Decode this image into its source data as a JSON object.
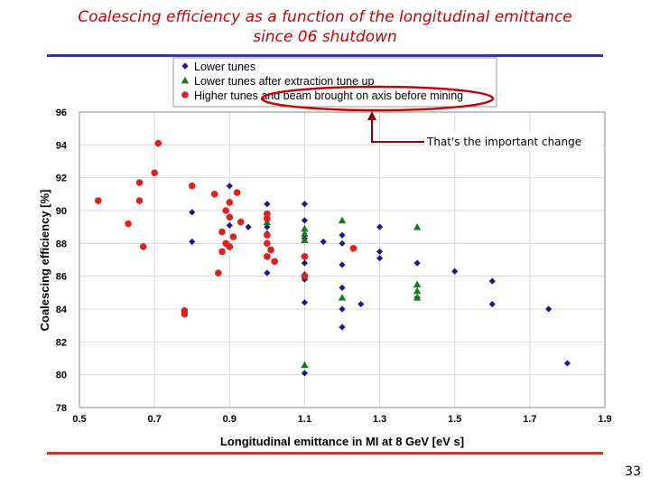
{
  "slide": {
    "title_line1": "Coalescing efficiency as a function of the longitudinal emittance",
    "title_line2": "since 06 shutdown",
    "page_number": "33",
    "annotation": "That's the important change"
  },
  "chart_data": {
    "type": "scatter",
    "title": "Coalescing efficiency as a function of the longitudinal emittance since 06 shutdown",
    "xlabel": "Longitudinal emittance in MI at 8 GeV [eV s]",
    "ylabel": "Coalescing efficiency [%]",
    "xlim": [
      0.5,
      1.9
    ],
    "ylim": [
      78,
      96
    ],
    "xticks": [
      "0.5",
      "0.7",
      "0.9",
      "1.1",
      "1.3",
      "1.5",
      "1.7",
      "1.9"
    ],
    "yticks": [
      "78",
      "80",
      "82",
      "84",
      "86",
      "88",
      "90",
      "92",
      "94",
      "96"
    ],
    "grid": true,
    "legend_position": "top",
    "series": [
      {
        "name": "Lower tunes",
        "marker": "diamond",
        "color": "#1a1a8c",
        "points": [
          [
            0.8,
            89.9
          ],
          [
            0.8,
            88.1
          ],
          [
            0.9,
            91.5
          ],
          [
            0.9,
            89.1
          ],
          [
            0.95,
            89.0
          ],
          [
            1.0,
            90.4
          ],
          [
            1.0,
            89.0
          ],
          [
            1.0,
            88.6
          ],
          [
            1.0,
            86.2
          ],
          [
            1.1,
            90.4
          ],
          [
            1.1,
            89.4
          ],
          [
            1.1,
            88.3
          ],
          [
            1.1,
            86.8
          ],
          [
            1.1,
            86.1
          ],
          [
            1.1,
            85.8
          ],
          [
            1.1,
            84.4
          ],
          [
            1.1,
            80.1
          ],
          [
            1.15,
            88.1
          ],
          [
            1.2,
            88.5
          ],
          [
            1.2,
            88.0
          ],
          [
            1.2,
            86.7
          ],
          [
            1.2,
            85.3
          ],
          [
            1.2,
            84.0
          ],
          [
            1.2,
            82.9
          ],
          [
            1.25,
            84.3
          ],
          [
            1.3,
            89.0
          ],
          [
            1.3,
            87.5
          ],
          [
            1.3,
            87.1
          ],
          [
            1.4,
            86.8
          ],
          [
            1.4,
            84.7
          ],
          [
            1.5,
            86.3
          ],
          [
            1.6,
            85.7
          ],
          [
            1.6,
            84.3
          ],
          [
            1.75,
            84.0
          ],
          [
            1.8,
            80.7
          ]
        ]
      },
      {
        "name": "Lower tunes after extraction tune up",
        "marker": "triangle",
        "color": "#1a7a1a",
        "points": [
          [
            1.0,
            89.3
          ],
          [
            1.1,
            88.9
          ],
          [
            1.1,
            88.6
          ],
          [
            1.1,
            88.2
          ],
          [
            1.1,
            80.6
          ],
          [
            1.2,
            89.4
          ],
          [
            1.2,
            84.7
          ],
          [
            1.4,
            89.0
          ],
          [
            1.4,
            85.5
          ],
          [
            1.4,
            85.1
          ],
          [
            1.4,
            84.7
          ]
        ]
      },
      {
        "name": "Higher tunes and beam brought on axis before mining",
        "marker": "circle",
        "color": "#e02020",
        "points": [
          [
            0.55,
            90.6
          ],
          [
            0.63,
            89.2
          ],
          [
            0.66,
            91.7
          ],
          [
            0.66,
            90.6
          ],
          [
            0.67,
            87.8
          ],
          [
            0.7,
            92.3
          ],
          [
            0.71,
            94.1
          ],
          [
            0.78,
            83.9
          ],
          [
            0.78,
            83.7
          ],
          [
            0.8,
            91.5
          ],
          [
            0.86,
            91.0
          ],
          [
            0.87,
            86.2
          ],
          [
            0.88,
            88.7
          ],
          [
            0.88,
            87.5
          ],
          [
            0.89,
            90.0
          ],
          [
            0.89,
            88.0
          ],
          [
            0.9,
            90.5
          ],
          [
            0.9,
            89.6
          ],
          [
            0.9,
            87.8
          ],
          [
            0.91,
            88.4
          ],
          [
            0.92,
            91.1
          ],
          [
            0.93,
            89.3
          ],
          [
            1.0,
            89.8
          ],
          [
            1.0,
            89.5
          ],
          [
            1.0,
            88.5
          ],
          [
            1.0,
            88.0
          ],
          [
            1.0,
            87.2
          ],
          [
            1.01,
            87.6
          ],
          [
            1.02,
            86.9
          ],
          [
            1.1,
            87.2
          ],
          [
            1.1,
            86.0
          ],
          [
            1.23,
            87.7
          ]
        ]
      }
    ]
  }
}
